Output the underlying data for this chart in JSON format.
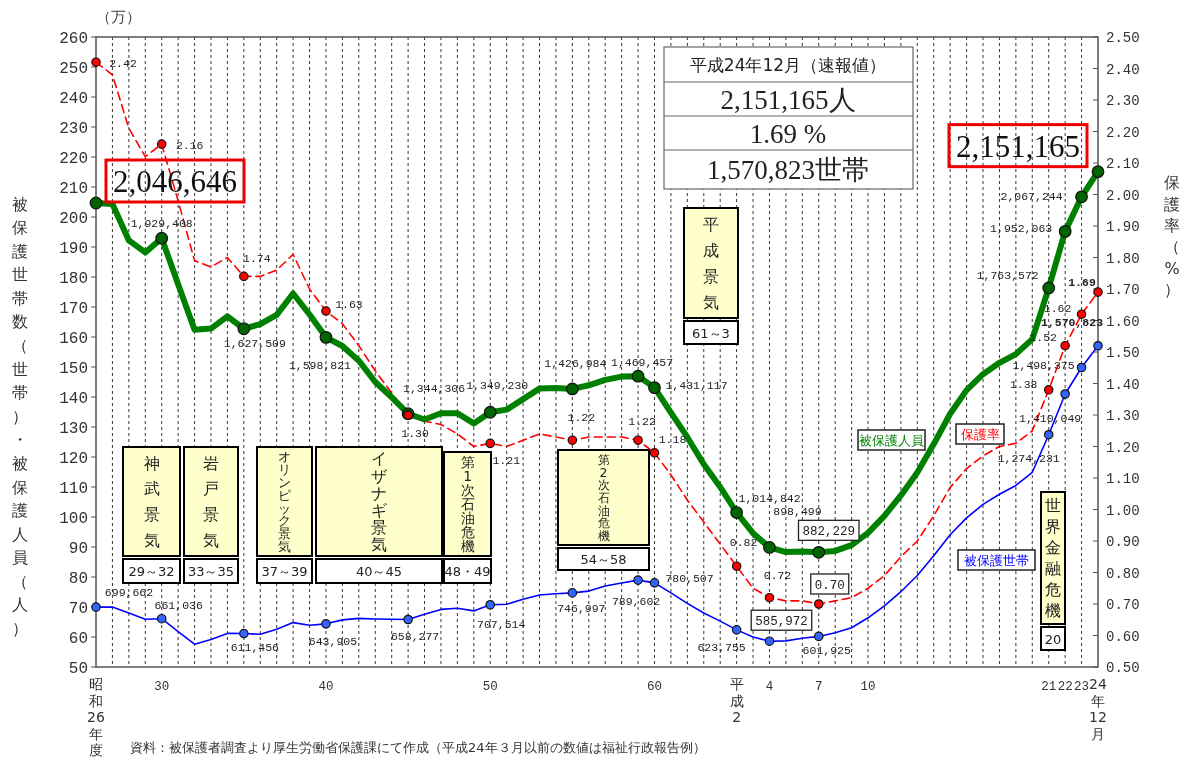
{
  "chart_data": {
    "type": "line",
    "categories": [
      "昭和26年度",
      null,
      null,
      null,
      "30",
      null,
      null,
      null,
      null,
      null,
      null,
      null,
      null,
      null,
      "40",
      null,
      null,
      null,
      null,
      null,
      null,
      null,
      null,
      null,
      "50",
      null,
      null,
      null,
      null,
      null,
      null,
      null,
      null,
      null,
      "60",
      null,
      null,
      null,
      null,
      "平成2",
      null,
      "4",
      null,
      null,
      "7",
      null,
      null,
      "10",
      null,
      null,
      null,
      null,
      null,
      null,
      null,
      null,
      null,
      null,
      "21",
      "22",
      "23",
      "24年12月"
    ],
    "series": [
      {
        "name": "被保護人員",
        "color": "#008000",
        "line_style": "solid",
        "values": [
          204.6646,
          204.3,
          192.2,
          188.2,
          192.9408,
          177.6,
          162.4,
          162.8,
          166.9,
          162.7509,
          164.3,
          167.4,
          174.5,
          167.5,
          159.8821,
          157.0,
          152.1,
          145.0,
          139.9,
          134.4306,
          132.5,
          134.6,
          134.6,
          131.2,
          134.923,
          135.8,
          139.3,
          142.8,
          143.0,
          142.6984,
          143.9,
          145.7,
          146.8,
          146.9457,
          143.1117,
          134.8,
          126.6,
          117.6,
          110.0,
          101.4842,
          94.6,
          89.8499,
          88.3,
          88.5,
          88.2229,
          88.7,
          90.6,
          94.7,
          100.4,
          107.2,
          114.8,
          124.3,
          134.4,
          142.3,
          147.6,
          151.4,
          154.3,
          159.3,
          176.3572,
          195.2063,
          206.7244,
          215.1165
        ]
      },
      {
        "name": "被保護世帯",
        "color": "#0000ff",
        "line_style": "solid",
        "values": [
          69.9662,
          70.0,
          68.0,
          65.9,
          66.1036,
          61.8,
          57.6,
          59.2,
          61.2,
          61.1456,
          60.9,
          62.6,
          64.8,
          63.9,
          64.3905,
          65.7,
          66.2,
          66.0,
          65.9,
          65.8277,
          67.6,
          69.2,
          69.6,
          68.7,
          70.7514,
          70.9,
          72.6,
          74.0,
          74.4,
          74.6997,
          75.3,
          77.0,
          78.0,
          78.9602,
          78.0507,
          74.7,
          71.2,
          68.0,
          65.3,
          62.3755,
          60.0,
          58.5972,
          58.7,
          59.6,
          60.1925,
          61.4,
          63.1,
          66.4,
          70.4,
          75.1,
          80.5,
          87.1,
          94.1,
          99.7,
          104.2,
          107.6,
          110.5,
          114.9,
          127.4231,
          141.0049,
          149.8375,
          157.0823
        ]
      },
      {
        "name": "保護率",
        "color": "#ff0000",
        "line_style": "dashed",
        "axis": "y2",
        "values": [
          2.42,
          2.38,
          2.21,
          2.12,
          2.16,
          1.98,
          1.79,
          1.77,
          1.8,
          1.74,
          1.74,
          1.76,
          1.81,
          1.7,
          1.63,
          1.59,
          1.52,
          1.44,
          1.37,
          1.3,
          1.28,
          1.27,
          1.24,
          1.2,
          1.21,
          1.2,
          1.22,
          1.24,
          1.23,
          1.22,
          1.23,
          1.23,
          1.23,
          1.22,
          1.18,
          1.11,
          1.03,
          0.96,
          0.89,
          0.82,
          0.75,
          0.72,
          0.71,
          0.71,
          0.7,
          0.71,
          0.72,
          0.75,
          0.79,
          0.85,
          0.9,
          0.98,
          1.07,
          1.13,
          1.17,
          1.2,
          1.21,
          1.25,
          1.38,
          1.52,
          1.62,
          1.69
        ],
        "value_labels": [
          "2.42",
          null,
          null,
          null,
          "2.16",
          null,
          null,
          null,
          null,
          "1.74",
          null,
          null,
          null,
          null,
          "1.63",
          null,
          null,
          null,
          null,
          "1.30",
          null,
          null,
          null,
          null,
          "1.21",
          null,
          null,
          null,
          null,
          "1.22",
          null,
          null,
          null,
          "1.22",
          "1.18",
          null,
          null,
          null,
          null,
          "0.82",
          null,
          "0.72",
          null,
          null,
          "0.70",
          null,
          null,
          null,
          null,
          null,
          null,
          null,
          null,
          null,
          null,
          null,
          null,
          null,
          "1.38",
          "1.52",
          "1.62",
          "1.69"
        ]
      }
    ],
    "ylim": [
      50,
      260
    ],
    "yticks": [
      50,
      60,
      70,
      80,
      90,
      100,
      110,
      120,
      130,
      140,
      150,
      160,
      170,
      180,
      190,
      200,
      210,
      220,
      230,
      240,
      250,
      260
    ],
    "y2lim": [
      0.5,
      2.5
    ],
    "y2ticks": [
      {
        "value": 0.5,
        "label": "0.50"
      },
      {
        "value": 0.6,
        "label": "0.60"
      },
      {
        "value": 0.7,
        "label": "0.70"
      },
      {
        "value": 0.8,
        "label": "0.80"
      },
      {
        "value": 0.9,
        "label": "0.90"
      },
      {
        "value": 1.0,
        "label": "1.00"
      },
      {
        "value": 1.1,
        "label": "1.10"
      },
      {
        "value": 1.2,
        "label": "1.20"
      },
      {
        "value": 1.3,
        "label": "1.30"
      },
      {
        "value": 1.4,
        "label": "1.40"
      },
      {
        "value": 1.5,
        "label": "1.50"
      },
      {
        "value": 1.6,
        "label": "1.60"
      },
      {
        "value": 1.7,
        "label": "1.70"
      },
      {
        "value": 1.8,
        "label": "1.80"
      },
      {
        "value": 1.9,
        "label": "1.90"
      },
      {
        "value": 2.0,
        "label": "2.00"
      },
      {
        "value": 2.1,
        "label": "2.10"
      },
      {
        "value": 2.2,
        "label": "2.20"
      },
      {
        "value": 2.3,
        "label": "2.30"
      },
      {
        "value": 2.4,
        "label": "2.40"
      },
      {
        "value": 2.5,
        "label": "2.50"
      }
    ],
    "ylabel": "被保護世帯数（世帯）・被保護人員（人）",
    "y2label": "保護率（%）",
    "annotations": [
      "（万）",
      "平成24年12月（速報値）",
      "2,151,165人",
      "1.69 %",
      "1,570,823世帯",
      "神武景気",
      "29～32",
      "岩戸景気",
      "33～35",
      "オリンピック景気",
      "37～39",
      "イザナギ景気",
      "40～45",
      "第1次石油危機",
      "48・49",
      "第2次石油危機",
      "54～58",
      "平成景気",
      "61～3",
      "世界金融危機",
      "20",
      "資料：被保護者調査より厚生労働省保護課にて作成（平成24年３月以前の数値は福祉行政報告例）",
      {
        "text": "2,046,646",
        "x": "昭和26年度",
        "y": 204.6646
      },
      {
        "text": "1,929,408",
        "x": "30",
        "y": 192.9408
      },
      {
        "text": "1,627,509",
        "y": 162.7509
      },
      {
        "text": "1,598,821",
        "x": "40",
        "y": 159.8821
      },
      {
        "text": "1,344,306",
        "y": 134.4306
      },
      {
        "text": "1,349,230",
        "x": "50",
        "y": 134.923
      },
      {
        "text": "1,426,984",
        "y": 142.6984
      },
      {
        "text": "1,469,457",
        "y": 146.9457
      },
      {
        "text": "1,431,117",
        "x": "60",
        "y": 143.1117
      },
      {
        "text": "1,014,842",
        "x": "平成2",
        "y": 101.4842
      },
      {
        "text": "898,499",
        "x": "4",
        "y": 89.8499
      },
      {
        "text": "882,229",
        "x": "7",
        "y": 88.2229
      },
      {
        "text": "1,763,572",
        "x": "21",
        "y": 176.3572
      },
      {
        "text": "1,952,063",
        "x": "22",
        "y": 195.2063
      },
      {
        "text": "2,067,244",
        "x": "23",
        "y": 206.7244
      },
      {
        "text": "2,151,165",
        "x": "24年12月",
        "y": 215.1165
      },
      {
        "text": "699,662",
        "x": "昭和26年度",
        "y": 69.9662
      },
      {
        "text": "661,036",
        "x": "30",
        "y": 66.1036
      },
      {
        "text": "611,456",
        "y": 61.1456
      },
      {
        "text": "643,905",
        "x": "40",
        "y": 64.3905
      },
      {
        "text": "658,277",
        "y": 65.8277
      },
      {
        "text": "707,514",
        "x": "50",
        "y": 70.7514
      },
      {
        "text": "746,997",
        "y": 74.6997
      },
      {
        "text": "789,602",
        "y": 78.9602
      },
      {
        "text": "780,507",
        "x": "60",
        "y": 78.0507
      },
      {
        "text": "623,755",
        "x": "平成2",
        "y": 62.3755
      },
      {
        "text": "585,972",
        "x": "4",
        "y": 58.5972
      },
      {
        "text": "601,925",
        "x": "7",
        "y": 60.1925
      },
      {
        "text": "1,274,231",
        "x": "21",
        "y": 127.4231
      },
      {
        "text": "1,410,049",
        "x": "22",
        "y": 141.0049
      },
      {
        "text": "1,498,375",
        "x": "23",
        "y": 149.8375
      },
      {
        "text": "1,570,823",
        "x": "24年12月",
        "y": 157.0823
      }
    ],
    "grid": "x"
  }
}
